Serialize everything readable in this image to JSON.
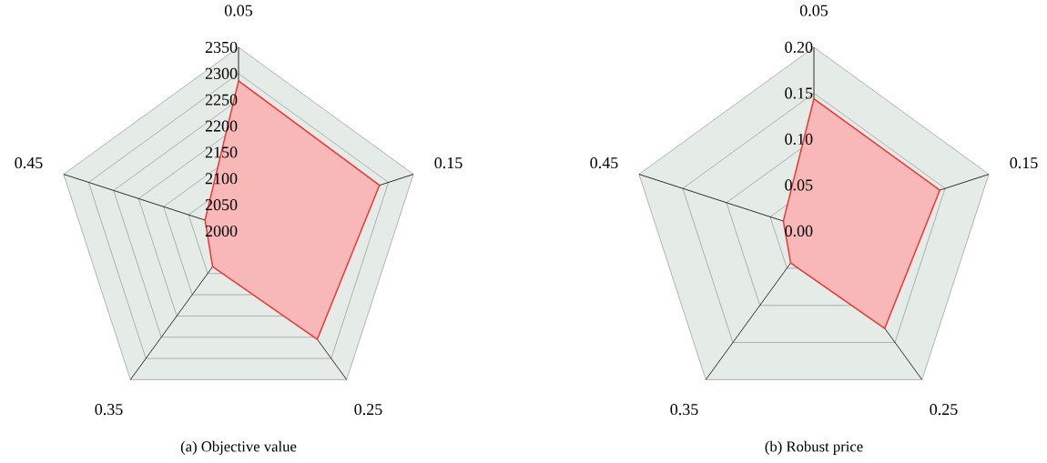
{
  "chart_data": [
    {
      "type": "radar",
      "title": "(a)  Objective value",
      "categories": [
        "0.05",
        "0.15",
        "0.25",
        "0.35",
        "0.45"
      ],
      "grid": true,
      "ylim": [
        2000,
        2350
      ],
      "yticks": [
        2000,
        2050,
        2100,
        2150,
        2200,
        2250,
        2300,
        2350
      ],
      "series": [
        {
          "color": "#ee3333",
          "values": [
            2286,
            2282,
            2255,
            2084,
            2067
          ]
        }
      ]
    },
    {
      "type": "radar",
      "title": "(b)  Robust price",
      "categories": [
        "0.05",
        "0.15",
        "0.25",
        "0.35",
        "0.45"
      ],
      "grid": true,
      "ylim": [
        0,
        0.2
      ],
      "yticks": [
        {
          "value": 0,
          "label": "0.00"
        },
        {
          "value": 0.05,
          "label": "0.05"
        },
        {
          "value": 0.1,
          "label": "0.10"
        },
        {
          "value": 0.15,
          "label": "0.15"
        },
        {
          "value": 0.2,
          "label": "0.20"
        }
      ],
      "series": [
        {
          "color": "#ee3333",
          "values": [
            0.144,
            0.144,
            0.131,
            0.043,
            0.035
          ]
        }
      ]
    }
  ]
}
